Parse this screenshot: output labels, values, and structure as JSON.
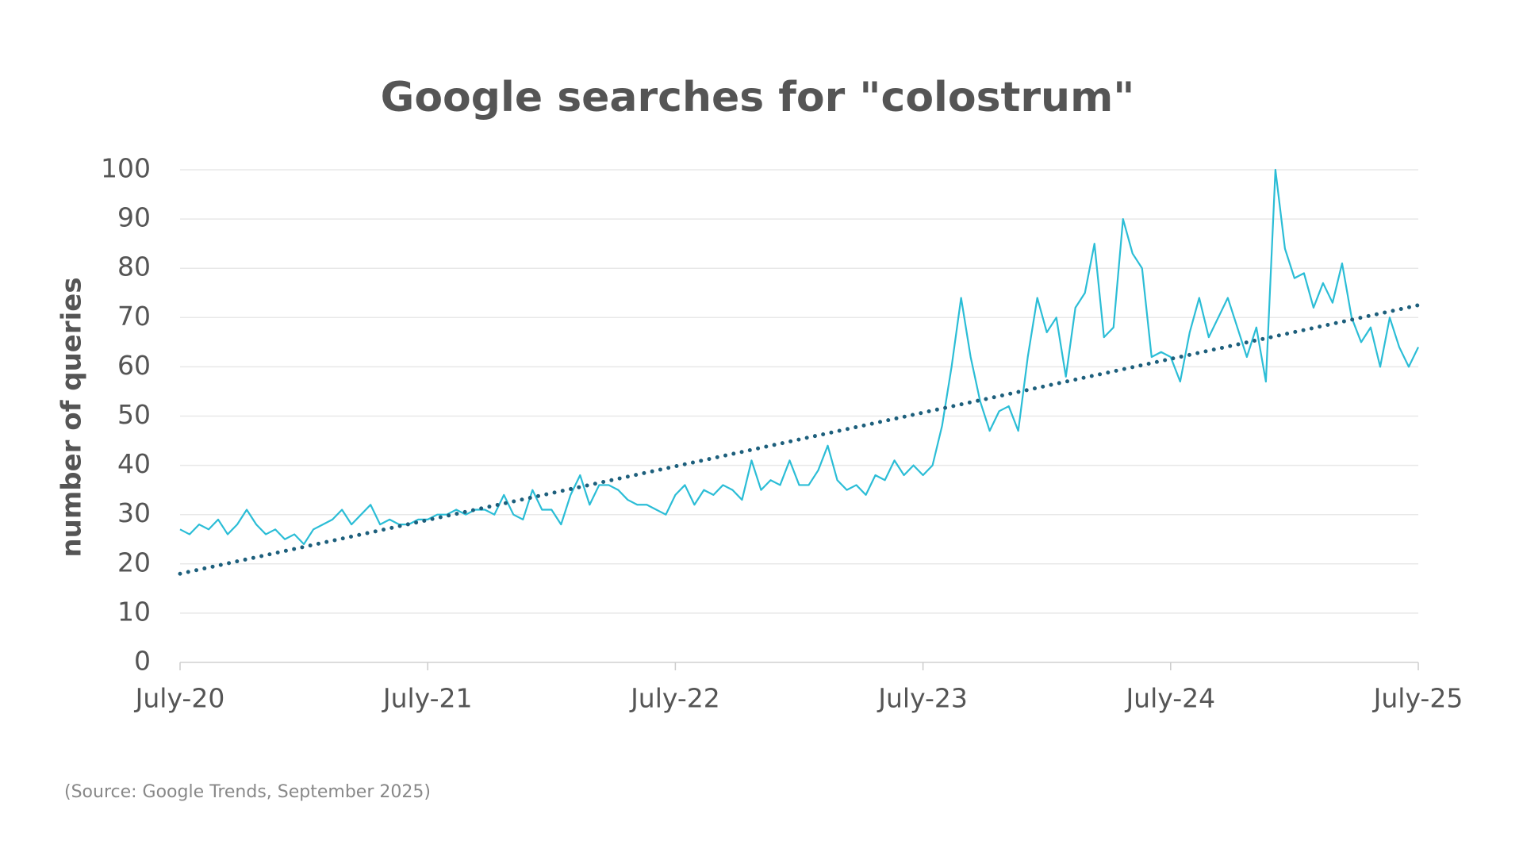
{
  "chart_data": {
    "type": "line",
    "title": "Google searches for \"colostrum\"",
    "y_label": "number of queries",
    "source": "(Source: Google Trends, September 2025)",
    "categories": [
      "July-20",
      null,
      null,
      null,
      null,
      null,
      null,
      null,
      null,
      null,
      null,
      null,
      null,
      null,
      null,
      null,
      null,
      null,
      null,
      null,
      null,
      null,
      null,
      null,
      null,
      null,
      "July-21",
      null,
      null,
      null,
      null,
      null,
      null,
      null,
      null,
      null,
      null,
      null,
      null,
      null,
      null,
      null,
      null,
      null,
      null,
      null,
      null,
      null,
      null,
      null,
      null,
      null,
      "July-22",
      null,
      null,
      null,
      null,
      null,
      null,
      null,
      null,
      null,
      null,
      null,
      null,
      null,
      null,
      null,
      null,
      null,
      null,
      null,
      null,
      null,
      null,
      null,
      null,
      null,
      "July-23",
      null,
      null,
      null,
      null,
      null,
      null,
      null,
      null,
      null,
      null,
      null,
      null,
      null,
      null,
      null,
      null,
      null,
      null,
      null,
      null,
      null,
      null,
      null,
      null,
      null,
      "July-24",
      null,
      null,
      null,
      null,
      null,
      null,
      null,
      null,
      null,
      null,
      null,
      null,
      null,
      null,
      null,
      null,
      null,
      null,
      null,
      null,
      null,
      null,
      null,
      null,
      null,
      "July-25"
    ],
    "series": [
      {
        "color": "#2bbdd6",
        "values": [
          27,
          26,
          28,
          27,
          29,
          26,
          28,
          31,
          28,
          26,
          27,
          25,
          26,
          24,
          27,
          28,
          29,
          31,
          28,
          30,
          32,
          28,
          29,
          28,
          28,
          29,
          29,
          30,
          30,
          31,
          30,
          31,
          31,
          30,
          34,
          30,
          29,
          35,
          31,
          31,
          28,
          34,
          38,
          32,
          36,
          36,
          35,
          33,
          32,
          32,
          31,
          30,
          34,
          36,
          32,
          35,
          34,
          36,
          35,
          33,
          41,
          35,
          37,
          36,
          41,
          36,
          36,
          39,
          44,
          37,
          35,
          36,
          34,
          38,
          37,
          41,
          38,
          40,
          38,
          40,
          48,
          60,
          74,
          62,
          53,
          47,
          51,
          52,
          47,
          62,
          74,
          67,
          70,
          58,
          72,
          75,
          85,
          66,
          68,
          90,
          83,
          80,
          62,
          63,
          62,
          57,
          67,
          74,
          66,
          70,
          74,
          68,
          62,
          68,
          57,
          100,
          84,
          78,
          79,
          72,
          77,
          73,
          81,
          70,
          65,
          68,
          60,
          70,
          64,
          60,
          64
        ]
      }
    ],
    "trend": {
      "color": "#1d5f7c",
      "values": [
        18,
        72.5
      ]
    },
    "ylim": [
      0,
      100
    ],
    "yticks": [
      0,
      10,
      20,
      30,
      40,
      50,
      60,
      70,
      80,
      90,
      100
    ],
    "grid": true
  }
}
